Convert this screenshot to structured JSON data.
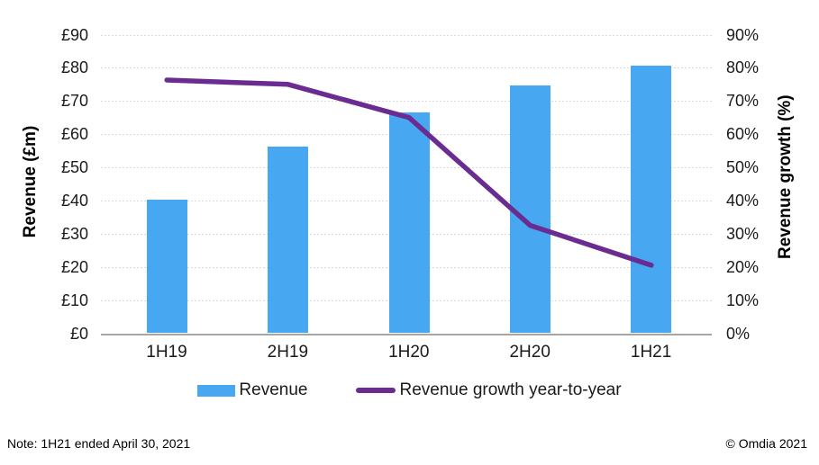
{
  "chart_data": {
    "type": "bar",
    "subtype": "combo-bar-line",
    "categories": [
      "1H19",
      "2H19",
      "1H20",
      "2H20",
      "1H21"
    ],
    "series": [
      {
        "name": "Revenue",
        "type": "bar",
        "axis": "left",
        "color": "#47a7f0",
        "values": [
          40.2,
          56.2,
          66.5,
          74.6,
          80.6
        ]
      },
      {
        "name": "Revenue growth year-to-year",
        "type": "line",
        "axis": "right",
        "color": "#6a2c91",
        "values": [
          76.3,
          75.0,
          65.0,
          32.5,
          20.5
        ]
      }
    ],
    "left_axis": {
      "label": "Revenue (£m)",
      "min": 0,
      "max": 90,
      "step": 10,
      "tick_labels": [
        "£0",
        "£10",
        "£20",
        "£30",
        "£40",
        "£50",
        "£60",
        "£70",
        "£80",
        "£90"
      ]
    },
    "right_axis": {
      "label": "Revenue growth (%)",
      "min": 0,
      "max": 90,
      "step": 10,
      "tick_labels": [
        "0%",
        "10%",
        "20%",
        "30%",
        "40%",
        "50%",
        "60%",
        "70%",
        "80%",
        "90%"
      ]
    },
    "grid": true,
    "legend_position": "bottom",
    "colors": {
      "gridline": "#d9d9d9",
      "axis_line": "#a6a6a6"
    }
  },
  "legend": {
    "items": [
      {
        "label": "Revenue",
        "swatch": "bar",
        "color": "#47a7f0"
      },
      {
        "label": "Revenue growth year-to-year",
        "swatch": "line",
        "color": "#6a2c91"
      }
    ]
  },
  "footer": {
    "note": "Note: 1H21 ended April 30, 2021",
    "copyright": "© Omdia 2021"
  }
}
